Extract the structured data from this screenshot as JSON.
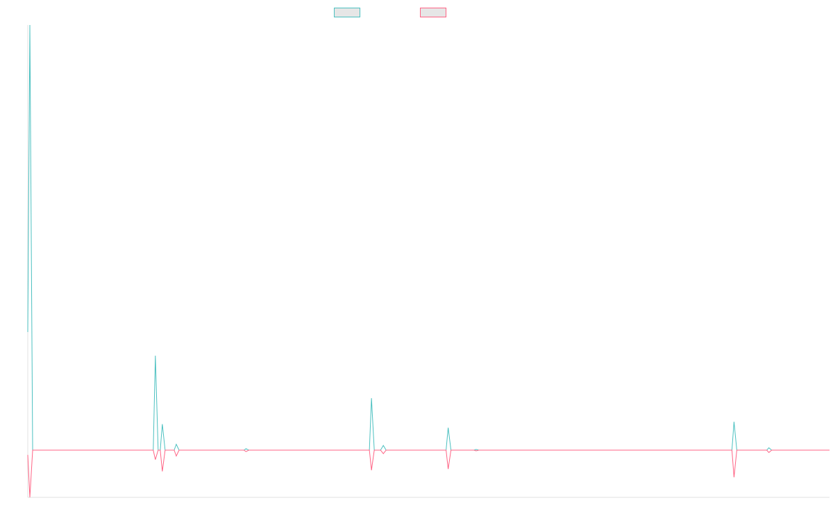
{
  "chart_data": {
    "type": "line",
    "title": "",
    "xlabel": "",
    "ylabel": "",
    "grid": false,
    "legend_placement": "top-center",
    "x_count": 115,
    "ylim": [
      -20,
      180
    ],
    "series": [
      {
        "color": "#4bc0c0",
        "points": [
          [
            0,
            50
          ],
          [
            0.3,
            180
          ],
          [
            0.7,
            0
          ],
          [
            18,
            0
          ],
          [
            18.3,
            40
          ],
          [
            18.7,
            0
          ],
          [
            19,
            0
          ],
          [
            19.3,
            11
          ],
          [
            19.7,
            0
          ],
          [
            21,
            0
          ],
          [
            21.3,
            2.5
          ],
          [
            21.7,
            0
          ],
          [
            31,
            0
          ],
          [
            31.3,
            0.6
          ],
          [
            31.7,
            0
          ],
          [
            49,
            0
          ],
          [
            49.3,
            22
          ],
          [
            49.7,
            0
          ],
          [
            50.6,
            0
          ],
          [
            51,
            2
          ],
          [
            51.4,
            0
          ],
          [
            60,
            0
          ],
          [
            60.3,
            9.5
          ],
          [
            60.7,
            0
          ],
          [
            64,
            0
          ],
          [
            64.3,
            0.3
          ],
          [
            64.7,
            0
          ],
          [
            101,
            0
          ],
          [
            101.3,
            12
          ],
          [
            101.7,
            0
          ],
          [
            106,
            0
          ],
          [
            106.3,
            1
          ],
          [
            106.7,
            0
          ],
          [
            115,
            0
          ]
        ]
      },
      {
        "color": "#ff6384",
        "points": [
          [
            0,
            -2
          ],
          [
            0.3,
            -20
          ],
          [
            0.7,
            0
          ],
          [
            18,
            0
          ],
          [
            18.3,
            -4
          ],
          [
            18.7,
            0
          ],
          [
            19,
            0
          ],
          [
            19.3,
            -9
          ],
          [
            19.7,
            0
          ],
          [
            21,
            0
          ],
          [
            21.3,
            -2.5
          ],
          [
            21.7,
            0
          ],
          [
            31,
            0
          ],
          [
            31.3,
            -0.6
          ],
          [
            31.7,
            0
          ],
          [
            49,
            0
          ],
          [
            49.3,
            -8.5
          ],
          [
            49.7,
            0
          ],
          [
            50.6,
            0
          ],
          [
            51,
            -1.5
          ],
          [
            51.4,
            0
          ],
          [
            60,
            0
          ],
          [
            60.3,
            -8
          ],
          [
            60.7,
            0
          ],
          [
            64,
            0
          ],
          [
            64.3,
            -0.3
          ],
          [
            64.7,
            0
          ],
          [
            101,
            0
          ],
          [
            101.3,
            -11.5
          ],
          [
            101.7,
            0
          ],
          [
            106,
            0
          ],
          [
            106.3,
            -1
          ],
          [
            106.7,
            0
          ],
          [
            115,
            0
          ]
        ]
      }
    ]
  }
}
